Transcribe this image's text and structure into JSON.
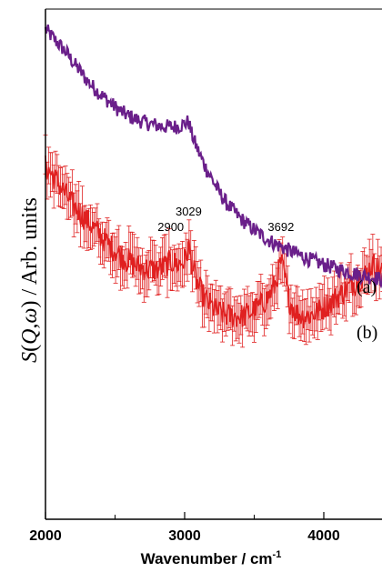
{
  "chart_data": {
    "type": "line",
    "xlabel": "Wavenumber / cm",
    "xlabel_sup": "-1",
    "ylabel": "S(Q,ω) / Arb. units",
    "ylabel_parts": {
      "s": "S",
      "open": "(",
      "q": "Q",
      "comma": ",",
      "omega": "ω",
      "close": ")",
      "rest": " / Arb. units"
    },
    "xlim": [
      2000,
      4450
    ],
    "x_ticks": [
      2000,
      3000,
      4000
    ],
    "x_tick_labels": [
      "2000",
      "3000",
      "4000"
    ],
    "y_ticks_shown": false,
    "series": [
      {
        "name": "(a)",
        "color": "#6a1f8a",
        "x": [
          2000,
          2050,
          2100,
          2150,
          2200,
          2250,
          2300,
          2350,
          2400,
          2450,
          2500,
          2550,
          2600,
          2650,
          2700,
          2750,
          2800,
          2850,
          2900,
          2950,
          3000,
          3029,
          3050,
          3100,
          3150,
          3200,
          3250,
          3300,
          3350,
          3400,
          3450,
          3500,
          3550,
          3600,
          3650,
          3700,
          3750,
          3800,
          3850,
          3900,
          3950,
          4000,
          4050,
          4100,
          4150,
          4200,
          4250,
          4300,
          4350,
          4400,
          4440
        ],
        "y": [
          0.96,
          0.945,
          0.93,
          0.915,
          0.895,
          0.878,
          0.86,
          0.845,
          0.832,
          0.82,
          0.808,
          0.798,
          0.79,
          0.784,
          0.779,
          0.775,
          0.772,
          0.77,
          0.769,
          0.77,
          0.775,
          0.78,
          0.755,
          0.72,
          0.69,
          0.665,
          0.64,
          0.62,
          0.605,
          0.59,
          0.578,
          0.567,
          0.557,
          0.548,
          0.54,
          0.533,
          0.527,
          0.521,
          0.515,
          0.509,
          0.504,
          0.499,
          0.495,
          0.49,
          0.487,
          0.483,
          0.48,
          0.477,
          0.474,
          0.471,
          0.47
        ]
      },
      {
        "name": "(b)",
        "color": "#e02020",
        "x": [
          2000,
          2050,
          2100,
          2150,
          2200,
          2250,
          2300,
          2350,
          2400,
          2450,
          2500,
          2550,
          2600,
          2650,
          2700,
          2750,
          2800,
          2850,
          2900,
          2950,
          3000,
          3029,
          3060,
          3100,
          3150,
          3200,
          3250,
          3300,
          3350,
          3400,
          3450,
          3500,
          3550,
          3600,
          3650,
          3692,
          3720,
          3750,
          3800,
          3850,
          3900,
          3950,
          4000,
          4050,
          4100,
          4150,
          4200,
          4250,
          4300,
          4350,
          4400,
          4440
        ],
        "y": [
          0.69,
          0.675,
          0.655,
          0.635,
          0.615,
          0.6,
          0.585,
          0.57,
          0.555,
          0.54,
          0.527,
          0.515,
          0.505,
          0.497,
          0.493,
          0.49,
          0.49,
          0.495,
          0.505,
          0.5,
          0.505,
          0.535,
          0.49,
          0.455,
          0.43,
          0.415,
          0.405,
          0.4,
          0.398,
          0.398,
          0.402,
          0.41,
          0.42,
          0.435,
          0.46,
          0.505,
          0.475,
          0.43,
          0.405,
          0.398,
          0.4,
          0.405,
          0.415,
          0.425,
          0.437,
          0.448,
          0.46,
          0.47,
          0.48,
          0.5,
          0.49,
          0.48
        ],
        "error_bar": 0.032
      }
    ],
    "annotations": [
      {
        "text": "2900",
        "x": 2900,
        "y": 0.565
      },
      {
        "text": "3029",
        "x": 3029,
        "y": 0.595
      },
      {
        "text": "3692",
        "x": 3692,
        "y": 0.565
      }
    ],
    "curve_labels": [
      {
        "text": "(a)",
        "series": "(a)"
      },
      {
        "text": "(b)",
        "series": "(b)"
      }
    ],
    "grid": false,
    "legend": "none"
  }
}
